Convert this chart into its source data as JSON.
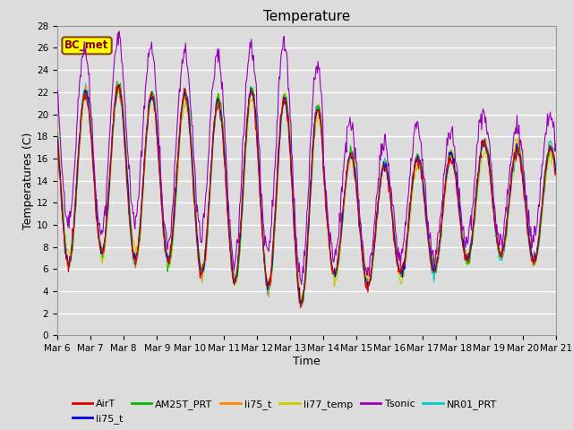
{
  "title": "Temperature",
  "xlabel": "Time",
  "ylabel": "Temperatures (C)",
  "ylim": [
    0,
    28
  ],
  "x_tick_labels": [
    "Mar 6",
    "Mar 7",
    "Mar 8",
    "Mar 9",
    "Mar 10",
    "Mar 11",
    "Mar 12",
    "Mar 13",
    "Mar 14",
    "Mar 15",
    "Mar 16",
    "Mar 17",
    "Mar 18",
    "Mar 19",
    "Mar 20",
    "Mar 21"
  ],
  "legend_entries": [
    {
      "label": "AirT",
      "color": "#dd0000"
    },
    {
      "label": "li75_t",
      "color": "#0000dd"
    },
    {
      "label": "AM25T_PRT",
      "color": "#00bb00"
    },
    {
      "label": "li75_t",
      "color": "#ff8800"
    },
    {
      "label": "li77_temp",
      "color": "#cccc00"
    },
    {
      "label": "Tsonic",
      "color": "#9900bb"
    },
    {
      "label": "NR01_PRT",
      "color": "#00cccc"
    }
  ],
  "annotation_text": "BC_met",
  "annotation_bg": "#ffff00",
  "annotation_border": "#8B4513",
  "plot_bg": "#dcdcdc",
  "fig_bg": "#dcdcdc",
  "title_fontsize": 11,
  "tick_fontsize": 7.5,
  "label_fontsize": 9
}
